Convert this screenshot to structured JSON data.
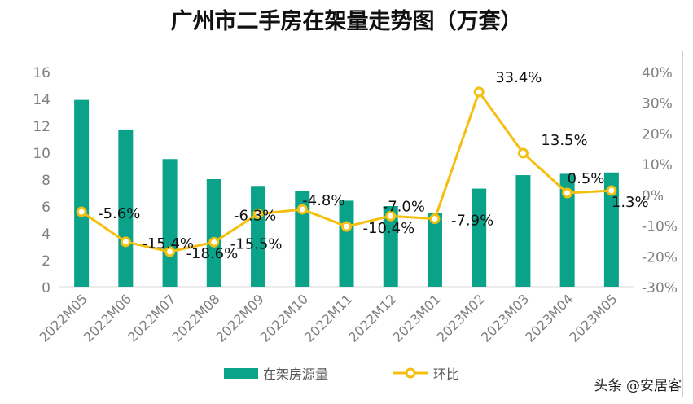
{
  "title": "广州市二手房在架量走势图（万套）",
  "watermark": "头条 @安居客",
  "colors": {
    "bar": "#0aa38a",
    "line": "#f5bf0f"
  },
  "chart_data": {
    "type": "bar+line",
    "title": "广州市二手房在架量走势图（万套）",
    "categories": [
      "2022M05",
      "2022M06",
      "2022M07",
      "2022M08",
      "2022M09",
      "2022M10",
      "2022M11",
      "2022M12",
      "2023M01",
      "2023M02",
      "2023M03",
      "2023M04",
      "2023M05"
    ],
    "series": [
      {
        "name": "在架房源量",
        "type": "bar",
        "axis": "left",
        "values": [
          13.9,
          11.7,
          9.5,
          8.0,
          7.5,
          7.1,
          6.4,
          6.0,
          5.5,
          7.3,
          8.3,
          8.4,
          8.5
        ]
      },
      {
        "name": "环比",
        "type": "line",
        "axis": "right",
        "values": [
          -5.6,
          -15.4,
          -18.6,
          -15.5,
          -6.3,
          -4.8,
          -10.4,
          -7.0,
          -7.9,
          33.4,
          13.5,
          0.5,
          1.3
        ],
        "labels": [
          "-5.6%",
          "-15.4%",
          "-18.6%",
          "-15.5%",
          "-6.3%",
          "-4.8%",
          "-10.4%",
          "-7.0%",
          "-7.9%",
          "33.4%",
          "13.5%",
          "0.5%",
          "1.3%"
        ]
      }
    ],
    "left_axis": {
      "range": [
        0,
        16
      ],
      "ticks": [
        "0",
        "2",
        "4",
        "6",
        "8",
        "10",
        "12",
        "14",
        "16"
      ]
    },
    "right_axis": {
      "range": [
        -30,
        40
      ],
      "ticks": [
        "-30%",
        "-20%",
        "-10%",
        "0%",
        "10%",
        "20%",
        "30%",
        "40%"
      ]
    },
    "grid": false,
    "legend": "bottom"
  }
}
